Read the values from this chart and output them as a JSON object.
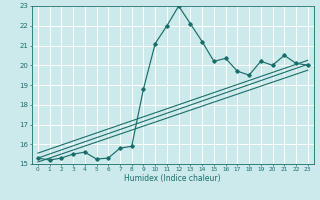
{
  "title": "",
  "xlabel": "Humidex (Indice chaleur)",
  "ylabel": "",
  "xlim": [
    -0.5,
    23.5
  ],
  "ylim": [
    15,
    23
  ],
  "yticks": [
    15,
    16,
    17,
    18,
    19,
    20,
    21,
    22,
    23
  ],
  "xticks": [
    0,
    1,
    2,
    3,
    4,
    5,
    6,
    7,
    8,
    9,
    10,
    11,
    12,
    13,
    14,
    15,
    16,
    17,
    18,
    19,
    20,
    21,
    22,
    23
  ],
  "bg_color": "#cce9ec",
  "grid_color": "#ffffff",
  "line_color": "#1a6e6a",
  "x": [
    0,
    1,
    2,
    3,
    4,
    5,
    6,
    7,
    8,
    9,
    10,
    11,
    12,
    13,
    14,
    15,
    16,
    17,
    18,
    19,
    20,
    21,
    22,
    23
  ],
  "y_main": [
    15.3,
    15.2,
    15.3,
    15.5,
    15.6,
    15.25,
    15.3,
    15.8,
    15.9,
    18.8,
    21.1,
    22.0,
    23.0,
    22.1,
    21.2,
    20.2,
    20.35,
    19.7,
    19.5,
    20.2,
    20.0,
    20.5,
    20.1,
    20.0
  ],
  "reg_lines": [
    {
      "x0": 0,
      "x1": 23,
      "y0": 15.3,
      "y1": 20.05
    },
    {
      "x0": 0,
      "x1": 23,
      "y0": 15.1,
      "y1": 19.75
    },
    {
      "x0": 0,
      "x1": 23,
      "y0": 15.55,
      "y1": 20.25
    }
  ]
}
